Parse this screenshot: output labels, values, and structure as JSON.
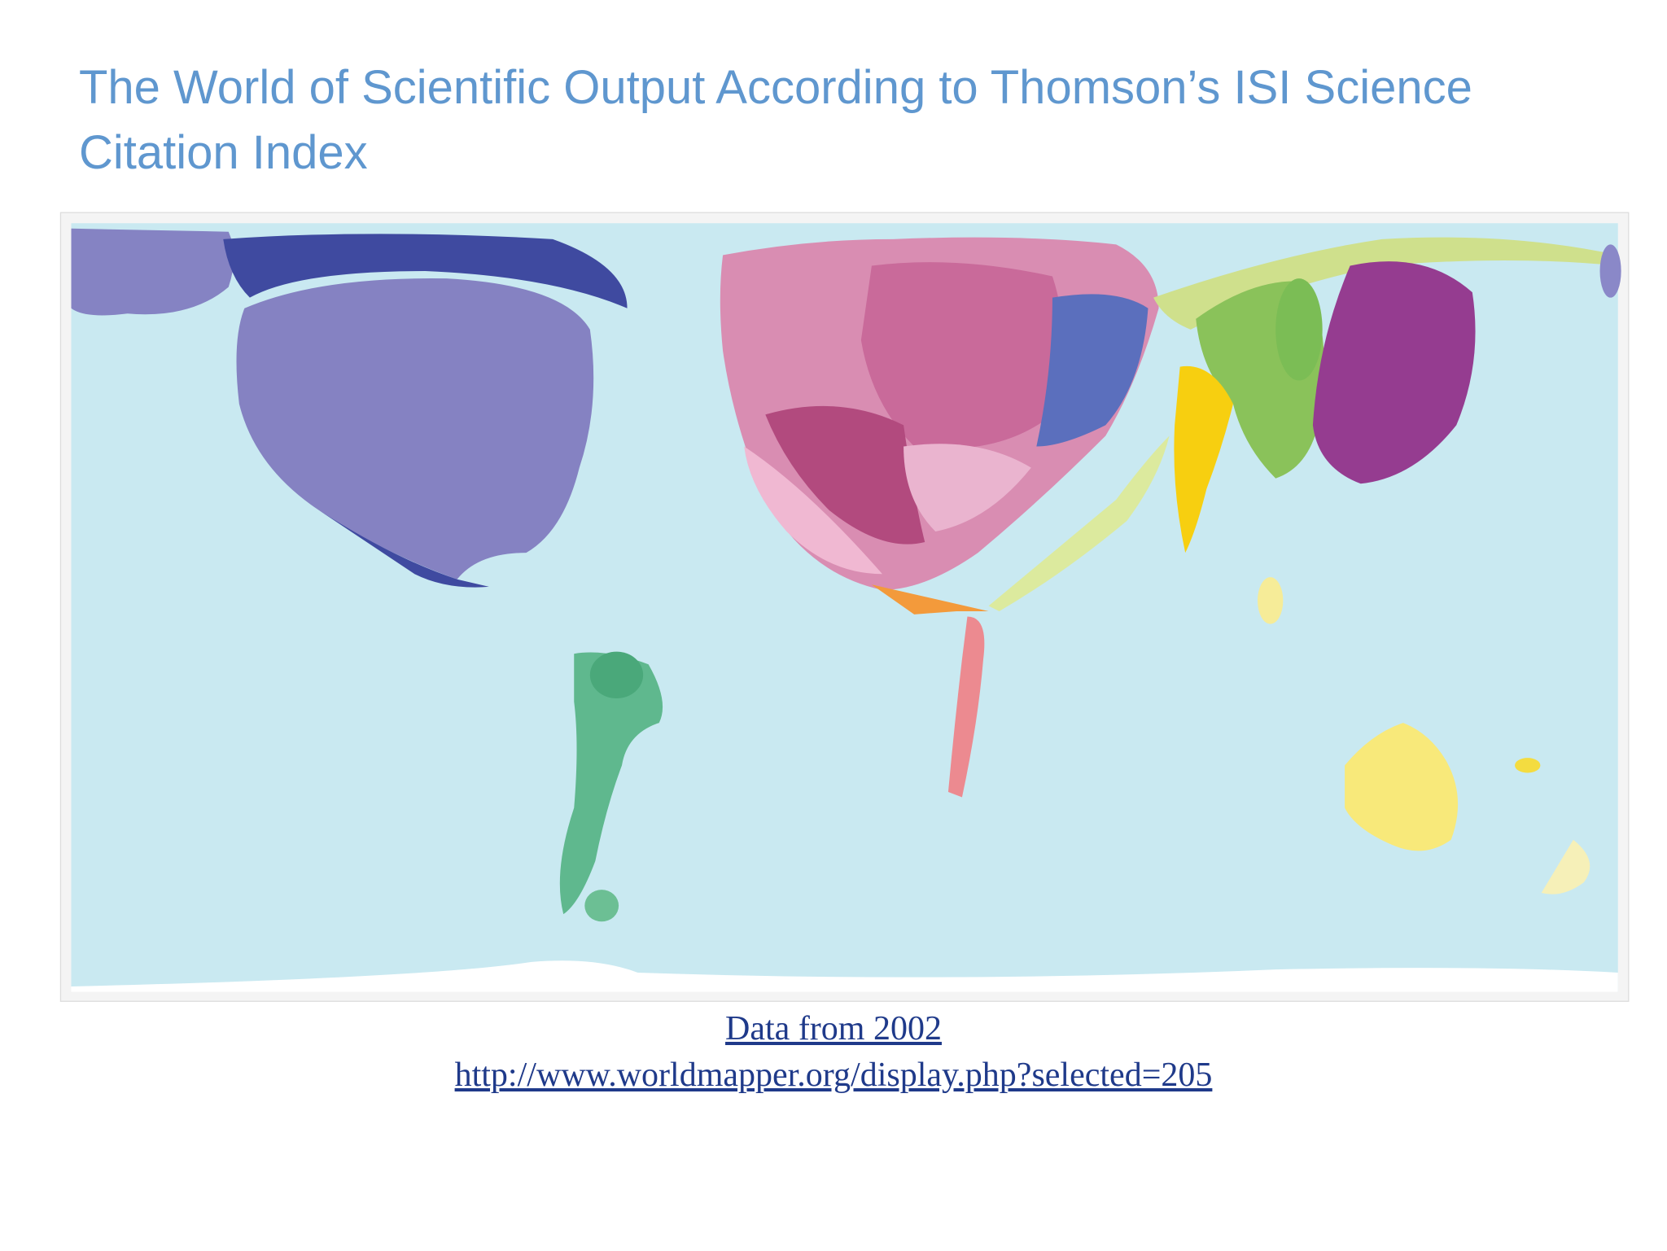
{
  "header": {
    "title": "The World of Scientific Output According to Thomson’s ISI Science Citation Index"
  },
  "links": [
    "Data from 2002",
    "http://www.worldmapper.org/display.php?selected=205"
  ]
}
